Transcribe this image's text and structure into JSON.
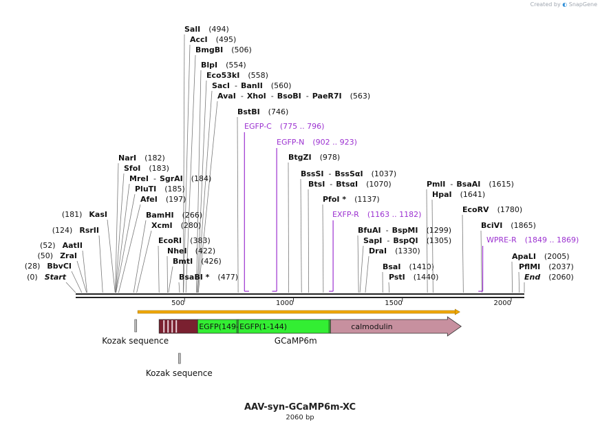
{
  "branding": {
    "created_by": "Created by",
    "product": "SnapGene"
  },
  "plasmid": {
    "name": "AAV-syn-GCaMP6m-XC",
    "length_label": "2060 bp",
    "length": 2060
  },
  "colors": {
    "enzyme_text": "#111111",
    "primer": "#9b30d0",
    "orf_fill": "#f2a900",
    "egfp_fill": "#33ee33",
    "calmodulin_fill": "#c7909f",
    "linker_fill": "#7a2030",
    "kozak_fill": "#b8b8b8",
    "tick_line": "#777777"
  },
  "axis": {
    "ticks": [
      500,
      1000,
      1500,
      2000
    ]
  },
  "enzymes": [
    {
      "name": "SalI",
      "pos": 494,
      "label": "(494)"
    },
    {
      "name": "AccI",
      "pos": 495,
      "label": "(495)"
    },
    {
      "name": "BmgBI",
      "pos": 506,
      "label": "(506)"
    },
    {
      "name": "BlpI",
      "pos": 554,
      "label": "(554)"
    },
    {
      "name": "Eco53kI",
      "pos": 558,
      "label": "(558)"
    },
    {
      "name": "SacI - BanII",
      "pos": 560,
      "label": "(560)"
    },
    {
      "name": "AvaI - XhoI - BsoBI - PaeR7I",
      "pos": 563,
      "label": "(563)"
    },
    {
      "name": "BstBI",
      "pos": 746,
      "label": "(746)"
    },
    {
      "name": "BtgZI",
      "pos": 978,
      "label": "(978)"
    },
    {
      "name": "BssSI - BssSαI",
      "pos": 1037,
      "label": "(1037)"
    },
    {
      "name": "BtsI - BtsαI",
      "pos": 1070,
      "label": "(1070)"
    },
    {
      "name": "PfoI *",
      "pos": 1137,
      "label": "(1137)"
    },
    {
      "name": "NarI",
      "pos": 182,
      "label": "(182)"
    },
    {
      "name": "SfoI",
      "pos": 183,
      "label": "(183)"
    },
    {
      "name": "MreI - SgrAI",
      "pos": 184,
      "label": "(184)"
    },
    {
      "name": "PluTI",
      "pos": 185,
      "label": "(185)"
    },
    {
      "name": "AfeI",
      "pos": 197,
      "label": "(197)"
    },
    {
      "name": "BamHI",
      "pos": 266,
      "label": "(266)"
    },
    {
      "name": "XcmI",
      "pos": 280,
      "label": "(280)"
    },
    {
      "name": "EcoRI",
      "pos": 383,
      "label": "(383)"
    },
    {
      "name": "NheI",
      "pos": 422,
      "label": "(422)"
    },
    {
      "name": "BmtI",
      "pos": 426,
      "label": "(426)"
    },
    {
      "name": "BsaBI *",
      "pos": 477,
      "label": "(477)"
    },
    {
      "name": "KasI",
      "pos": 181,
      "label": "(181)"
    },
    {
      "name": "RsrII",
      "pos": 124,
      "label": "(124)"
    },
    {
      "name": "AatII",
      "pos": 52,
      "label": "(52)"
    },
    {
      "name": "ZraI",
      "pos": 50,
      "label": "(50)"
    },
    {
      "name": "BbvCI",
      "pos": 28,
      "label": "(28)"
    },
    {
      "name": "Start",
      "pos": 0,
      "label": "(0)"
    },
    {
      "name": "BfuAI - BspMI",
      "pos": 1299,
      "label": "(1299)"
    },
    {
      "name": "SapI - BspQI",
      "pos": 1305,
      "label": "(1305)"
    },
    {
      "name": "DraI",
      "pos": 1330,
      "label": "(1330)"
    },
    {
      "name": "BsaI",
      "pos": 1410,
      "label": "(1410)"
    },
    {
      "name": "PstI",
      "pos": 1440,
      "label": "(1440)"
    },
    {
      "name": "PmlI - BsaAI",
      "pos": 1615,
      "label": "(1615)"
    },
    {
      "name": "HpaI",
      "pos": 1641,
      "label": "(1641)"
    },
    {
      "name": "EcoRV",
      "pos": 1780,
      "label": "(1780)"
    },
    {
      "name": "BciVI",
      "pos": 1865,
      "label": "(1865)"
    },
    {
      "name": "ApaLI",
      "pos": 2005,
      "label": "(2005)"
    },
    {
      "name": "PflMI",
      "pos": 2037,
      "label": "(2037)"
    },
    {
      "name": "End",
      "pos": 2060,
      "label": "(2060)"
    }
  ],
  "primers": [
    {
      "name": "EGFP-C",
      "range": "(775 .. 796)",
      "start": 775,
      "end": 796,
      "direction": "forward"
    },
    {
      "name": "EGFP-N",
      "range": "(902 .. 923)",
      "start": 902,
      "end": 923,
      "direction": "reverse"
    },
    {
      "name": "EXFP-R",
      "range": "(1163 .. 1182)",
      "start": 1163,
      "end": 1182,
      "direction": "reverse"
    },
    {
      "name": "WPRE-R",
      "range": "(1849 .. 1869)",
      "start": 1849,
      "end": 1869,
      "direction": "reverse"
    }
  ],
  "orf": {
    "start": 285,
    "end": 1764,
    "direction": "forward"
  },
  "features": [
    {
      "name": "Kozak sequence",
      "start": 274,
      "end": 283
    },
    {
      "name": "GCaMP6m",
      "start": 383,
      "end": 1764
    },
    {
      "name": "Kozak sequence",
      "start": 475,
      "end": 484
    }
  ],
  "gcamp_segments": [
    {
      "name": "EGFP(149-...",
      "start": 560,
      "end": 746
    },
    {
      "name": "EGFP(1-144)",
      "start": 746,
      "end": 1170
    },
    {
      "name": "calmodulin",
      "start": 1170,
      "end": 1764
    }
  ]
}
